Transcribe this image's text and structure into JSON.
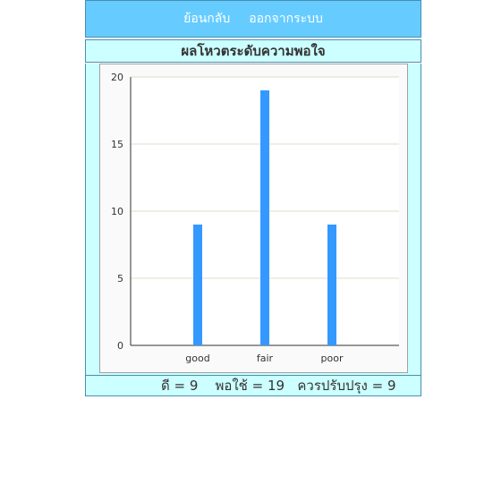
{
  "nav": {
    "back_label": "ย้อนกลับ",
    "logout_label": "ออกจากระบบ"
  },
  "page_title": "ผลโหวตระดับความพอใจ",
  "summary": {
    "text": "ดี = 9    พอใช้ = 19   ควรปรับปรุง = 9"
  },
  "colors": {
    "nav_bg": "#66ccff",
    "panel_bg": "#ccffff",
    "bar": "#3399ff"
  },
  "chart_data": {
    "type": "bar",
    "categories": [
      "good",
      "fair",
      "poor"
    ],
    "values": [
      9,
      19,
      9
    ],
    "title": "",
    "xlabel": "",
    "ylabel": "",
    "ylim": [
      0,
      20
    ],
    "yticks": [
      0,
      5,
      10,
      15,
      20
    ],
    "grid": true,
    "legend": "none"
  }
}
